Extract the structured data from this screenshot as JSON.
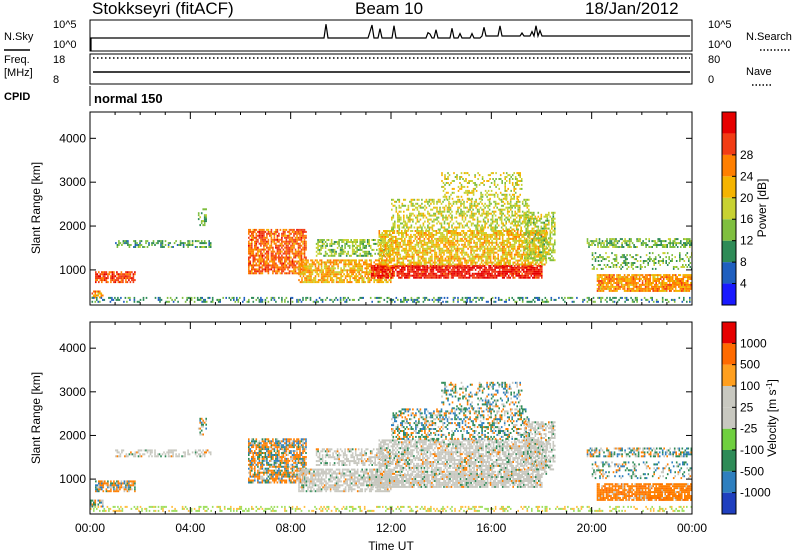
{
  "header": {
    "station": "Stokkseyri (fitACF)",
    "beam": "Beam 10",
    "date": "18/Jan/2012"
  },
  "strips": {
    "nsky_label": "N.Sky",
    "nsearch_label": "N.Search",
    "nsky_ticks": [
      "10^5",
      "10^0"
    ],
    "nsearch_ticks": [
      "10^5",
      "10^0"
    ],
    "freq_label": "Freq.",
    "freq_unit": "[MHz]",
    "freq_ticks": [
      "18",
      "8"
    ],
    "nave_label": "Nave",
    "nave_ticks": [
      "80",
      "0"
    ],
    "cpid_label": "CPID",
    "cpid_value": "normal 150"
  },
  "chart_data": [
    {
      "type": "heatmap",
      "panel": "power",
      "ylabel": "Slant Range [km]",
      "xlabel": "Time UT",
      "x_ticks": [
        "00:00",
        "04:00",
        "08:00",
        "12:00",
        "16:00",
        "20:00",
        "00:00"
      ],
      "x_range_hours": [
        0,
        24
      ],
      "y_ticks": [
        1000,
        2000,
        3000,
        4000
      ],
      "ylim": [
        200,
        4600
      ],
      "colorbar": {
        "label": "Power [dB]",
        "ticks": [
          4,
          8,
          12,
          16,
          20,
          24,
          28
        ],
        "colors": [
          "#1a1aff",
          "#1f5fbf",
          "#2e8b57",
          "#7fbf3f",
          "#c8d232",
          "#f5b400",
          "#ff7f00",
          "#f23c14",
          "#e60000"
        ]
      }
    },
    {
      "type": "heatmap",
      "panel": "velocity",
      "ylabel": "Slant Range [km]",
      "xlabel": "Time UT",
      "x_ticks": [
        "00:00",
        "04:00",
        "08:00",
        "12:00",
        "16:00",
        "20:00",
        "00:00"
      ],
      "x_range_hours": [
        0,
        24
      ],
      "y_ticks": [
        1000,
        2000,
        3000,
        4000
      ],
      "ylim": [
        200,
        4600
      ],
      "colorbar": {
        "label": "Velocity [m s^-1]",
        "ticks": [
          "1000",
          "500",
          "100",
          "25",
          "-25",
          "-100",
          "-500",
          "-1000"
        ],
        "colors": [
          "#1f3fbf",
          "#2e7fbf",
          "#2e8b57",
          "#6fcf3f",
          "#c8c8c0",
          "#c8c8c0",
          "#ff9f1f",
          "#ff6a00",
          "#e60000"
        ]
      }
    }
  ]
}
